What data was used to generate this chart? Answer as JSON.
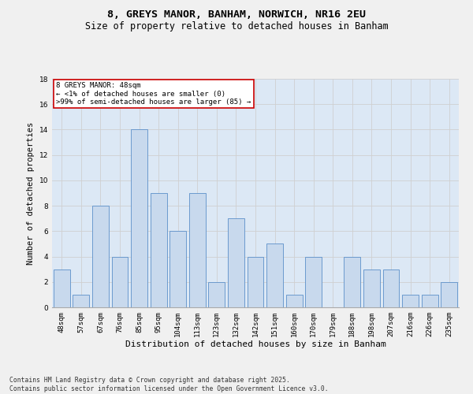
{
  "title1": "8, GREYS MANOR, BANHAM, NORWICH, NR16 2EU",
  "title2": "Size of property relative to detached houses in Banham",
  "xlabel": "Distribution of detached houses by size in Banham",
  "ylabel": "Number of detached properties",
  "categories": [
    "48sqm",
    "57sqm",
    "67sqm",
    "76sqm",
    "85sqm",
    "95sqm",
    "104sqm",
    "113sqm",
    "123sqm",
    "132sqm",
    "142sqm",
    "151sqm",
    "160sqm",
    "170sqm",
    "179sqm",
    "188sqm",
    "198sqm",
    "207sqm",
    "216sqm",
    "226sqm",
    "235sqm"
  ],
  "values": [
    3,
    1,
    8,
    4,
    14,
    9,
    6,
    9,
    2,
    7,
    4,
    5,
    1,
    4,
    0,
    4,
    3,
    3,
    1,
    1,
    2
  ],
  "bar_color": "#c8d9ed",
  "bar_edge_color": "#5b8fc9",
  "annotation_title": "8 GREYS MANOR: 48sqm",
  "annotation_line1": "← <1% of detached houses are smaller (0)",
  "annotation_line2": ">99% of semi-detached houses are larger (85) →",
  "annotation_box_color": "#ffffff",
  "annotation_box_edge": "#cc0000",
  "ylim": [
    0,
    18
  ],
  "yticks": [
    0,
    2,
    4,
    6,
    8,
    10,
    12,
    14,
    16,
    18
  ],
  "grid_color": "#d0d0d0",
  "bg_color": "#dce8f5",
  "footer1": "Contains HM Land Registry data © Crown copyright and database right 2025.",
  "footer2": "Contains public sector information licensed under the Open Government Licence v3.0.",
  "title1_fontsize": 9.5,
  "title2_fontsize": 8.5,
  "xlabel_fontsize": 8,
  "ylabel_fontsize": 7.5,
  "tick_fontsize": 6.5,
  "annotation_fontsize": 6.5,
  "footer_fontsize": 5.8
}
